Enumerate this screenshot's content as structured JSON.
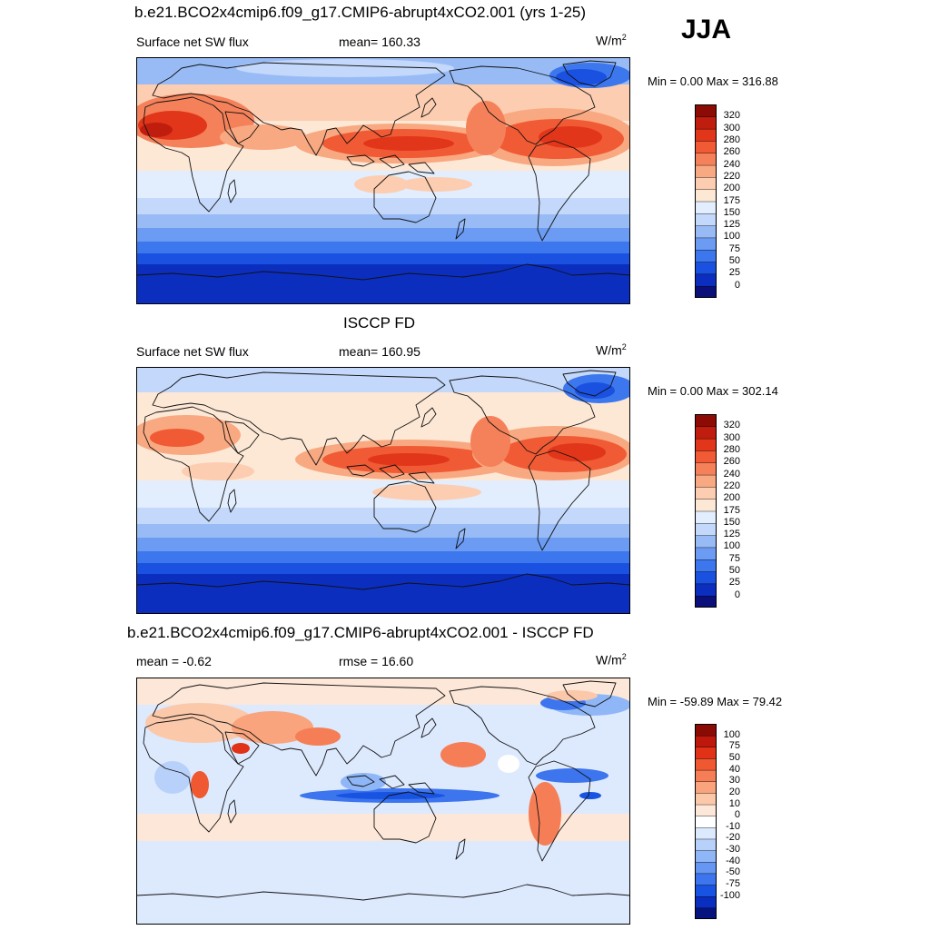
{
  "season": "JJA",
  "colors": {
    "sw": [
      "#0b0f7a",
      "#0b2ebf",
      "#1a51e0",
      "#3d77ee",
      "#6c9bf3",
      "#98bbf6",
      "#c3d8fa",
      "#e2eefd",
      "#fde8d6",
      "#fccdb0",
      "#f9a981",
      "#f5815a",
      "#f05a34",
      "#e2361a",
      "#bf1d0e",
      "#8c0c05"
    ],
    "diff": [
      "#06137e",
      "#0a2fc0",
      "#1853e2",
      "#3c75ee",
      "#6597f3",
      "#8fb6f6",
      "#b8d1fa",
      "#dde9fd",
      "#ffffff",
      "#fde7d8",
      "#fcc8aa",
      "#f9a47c",
      "#f57e56",
      "#ef5830",
      "#e13217",
      "#bd180b",
      "#8c0a04"
    ]
  },
  "panels": [
    {
      "title": "b.e21.BCO2x4cmip6.f09_g17.CMIP6-abrupt4xCO2.001 (yrs 1-25)",
      "left": "Surface net SW flux",
      "center": "mean= 160.33",
      "units": "W/m",
      "units_sup": "2",
      "minmax": "Min =   0.00 Max = 316.88",
      "ticks": [
        "320",
        "300",
        "280",
        "260",
        "240",
        "220",
        "200",
        "175",
        "150",
        "125",
        "100",
        "75",
        "50",
        "25",
        "0"
      ]
    },
    {
      "title": "ISCCP FD",
      "left": "Surface net SW flux",
      "center": "mean= 160.95",
      "units": "W/m",
      "units_sup": "2",
      "minmax": "Min =   0.00 Max = 302.14",
      "ticks": [
        "320",
        "300",
        "280",
        "260",
        "240",
        "220",
        "200",
        "175",
        "150",
        "125",
        "100",
        "75",
        "50",
        "25",
        "0"
      ]
    },
    {
      "title": "b.e21.BCO2x4cmip6.f09_g17.CMIP6-abrupt4xCO2.001 - ISCCP FD",
      "left": "mean =  -0.62",
      "center": "rmse =  16.60",
      "units": "W/m",
      "units_sup": "2",
      "minmax": "Min = -59.89 Max =  79.42",
      "ticks": [
        "100",
        "75",
        "50",
        "40",
        "30",
        "20",
        "10",
        "0",
        "-10",
        "-20",
        "-30",
        "-40",
        "-50",
        "-75",
        "-100"
      ]
    }
  ]
}
